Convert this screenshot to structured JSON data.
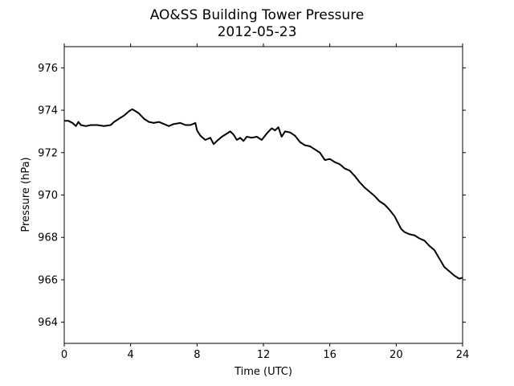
{
  "chart_data": {
    "type": "line",
    "title": "AO&SS Building Tower Pressure",
    "subtitle": "2012-05-23",
    "xlabel": "Time (UTC)",
    "ylabel": "Pressure (hPa)",
    "xlim": [
      0,
      24
    ],
    "ylim": [
      963,
      977
    ],
    "xticks": [
      0,
      4,
      8,
      12,
      16,
      20,
      24
    ],
    "yticks": [
      964,
      966,
      968,
      970,
      972,
      974,
      976
    ],
    "grid": false,
    "line_color": "#000000",
    "series": [
      {
        "x": [
          0,
          0.25,
          0.5,
          0.7,
          0.85,
          1.0,
          1.3,
          1.6,
          2.0,
          2.4,
          2.8,
          3.0,
          3.3,
          3.6,
          3.9,
          4.1,
          4.3,
          4.5,
          4.8,
          5.1,
          5.4,
          5.7,
          6.0,
          6.3,
          6.6,
          7.0,
          7.3,
          7.6,
          7.9,
          8.0,
          8.2,
          8.5,
          8.8,
          9.0,
          9.2,
          9.5,
          9.8,
          10.0,
          10.2,
          10.4,
          10.6,
          10.8,
          11.0,
          11.3,
          11.6,
          11.9,
          12.2,
          12.5,
          12.7,
          12.9,
          13.1,
          13.3,
          13.6,
          13.9,
          14.2,
          14.5,
          14.8,
          15.1,
          15.4,
          15.7,
          16.0,
          16.3,
          16.6,
          16.9,
          17.2,
          17.5,
          17.8,
          18.1,
          18.4,
          18.7,
          19.0,
          19.3,
          19.6,
          19.9,
          20.1,
          20.3,
          20.5,
          20.8,
          21.1,
          21.4,
          21.7,
          22.0,
          22.3,
          22.6,
          22.9,
          23.2,
          23.5,
          23.8,
          24.0
        ],
        "values": [
          973.5,
          973.5,
          973.4,
          973.25,
          973.45,
          973.3,
          973.25,
          973.3,
          973.3,
          973.25,
          973.3,
          973.45,
          973.6,
          973.75,
          973.95,
          974.05,
          973.95,
          973.85,
          973.6,
          973.45,
          973.4,
          973.45,
          973.35,
          973.25,
          973.35,
          973.4,
          973.3,
          973.3,
          973.4,
          973.05,
          972.8,
          972.6,
          972.7,
          972.4,
          972.55,
          972.75,
          972.9,
          973.0,
          972.85,
          972.6,
          972.7,
          972.55,
          972.75,
          972.7,
          972.75,
          972.6,
          972.9,
          973.15,
          973.05,
          973.2,
          972.75,
          973.0,
          972.95,
          972.8,
          972.5,
          972.35,
          972.3,
          972.15,
          972.0,
          971.65,
          971.7,
          971.55,
          971.45,
          971.25,
          971.15,
          970.9,
          970.6,
          970.35,
          970.15,
          969.95,
          969.7,
          969.55,
          969.3,
          969.0,
          968.7,
          968.4,
          968.25,
          968.15,
          968.1,
          967.95,
          967.85,
          967.6,
          967.4,
          967.0,
          966.6,
          966.4,
          966.2,
          966.05,
          966.1
        ]
      }
    ]
  }
}
